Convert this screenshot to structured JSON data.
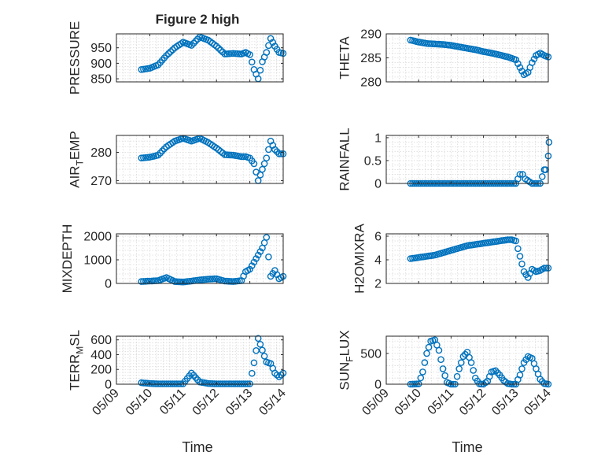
{
  "figure_title": "Figure 2 high",
  "xlabel_left": "Time",
  "xlabel_right": "Time",
  "marker_color": "#0072bd",
  "x_tick_labels": [
    "05/09",
    "05/10",
    "05/11",
    "05/12",
    "05/13",
    "05/14"
  ],
  "chart_data": [
    {
      "type": "scatter",
      "title": "Figure 2 high",
      "ylabel": "PRESSURE",
      "ylim": [
        840,
        995
      ],
      "yticks": [
        850,
        900,
        950
      ],
      "ytick_labels": [
        "850",
        "900",
        "950"
      ],
      "grid": true,
      "x": [
        "05/09 18:00",
        "05/10 00:00",
        "05/10 06:00",
        "05/10 12:00",
        "05/10 18:00",
        "05/11 00:00",
        "05/11 06:00",
        "05/11 12:00",
        "05/11 18:00",
        "05/12 00:00",
        "05/12 06:00",
        "05/12 12:00",
        "05/12 18:00",
        "05/12 21:00",
        "05/13 00:00",
        "05/13 03:00",
        "05/13 06:00",
        "05/13 09:00",
        "05/13 12:00",
        "05/13 15:00",
        "05/13 18:00",
        "05/13 21:00",
        "05/14 00:00"
      ],
      "y": [
        880,
        884,
        895,
        925,
        950,
        968,
        958,
        985,
        975,
        955,
        930,
        932,
        930,
        935,
        928,
        880,
        850,
        905,
        935,
        980,
        955,
        935,
        932
      ]
    },
    {
      "type": "scatter",
      "ylabel": "THETA",
      "ylim": [
        280,
        290
      ],
      "yticks": [
        280,
        285,
        290
      ],
      "ytick_labels": [
        "280",
        "285",
        "290"
      ],
      "grid": true,
      "x": [
        "05/09 18:00",
        "05/10 00:00",
        "05/10 06:00",
        "05/10 12:00",
        "05/10 18:00",
        "05/11 00:00",
        "05/11 06:00",
        "05/11 12:00",
        "05/11 18:00",
        "05/12 00:00",
        "05/12 06:00",
        "05/12 12:00",
        "05/12 18:00",
        "05/13 00:00",
        "05/13 03:00",
        "05/13 06:00",
        "05/13 09:00",
        "05/13 12:00",
        "05/13 15:00",
        "05/13 18:00",
        "05/13 21:00",
        "05/14 00:00"
      ],
      "y": [
        288.7,
        288.3,
        288.0,
        287.9,
        287.8,
        287.6,
        287.3,
        287.0,
        286.7,
        286.3,
        286.0,
        285.6,
        285.2,
        284.6,
        283.0,
        281.5,
        282.0,
        284.0,
        285.5,
        286.0,
        285.5,
        285.2
      ]
    },
    {
      "type": "scatter",
      "ylabel": "AIR_TEMP",
      "ylim": [
        269,
        286
      ],
      "yticks": [
        270,
        280
      ],
      "ytick_labels": [
        "270",
        "280"
      ],
      "grid": true,
      "x": [
        "05/09 18:00",
        "05/10 00:00",
        "05/10 06:00",
        "05/10 12:00",
        "05/10 18:00",
        "05/11 00:00",
        "05/11 06:00",
        "05/11 12:00",
        "05/11 18:00",
        "05/12 00:00",
        "05/12 06:00",
        "05/12 12:00",
        "05/12 18:00",
        "05/12 21:00",
        "05/13 00:00",
        "05/13 03:00",
        "05/13 06:00",
        "05/13 09:00",
        "05/13 12:00",
        "05/13 15:00",
        "05/13 18:00",
        "05/13 21:00",
        "05/14 00:00"
      ],
      "y": [
        278,
        278.3,
        279,
        282,
        284,
        285,
        284,
        285,
        283.5,
        281.5,
        279.2,
        279,
        278.5,
        278.5,
        278,
        276,
        270,
        274,
        278,
        284,
        281,
        279.5,
        279.5
      ]
    },
    {
      "type": "scatter",
      "ylabel": "RAINFALL",
      "ylim": [
        0,
        1.05
      ],
      "yticks": [
        0,
        0.5,
        1
      ],
      "ytick_labels": [
        "0",
        "0.5",
        "1"
      ],
      "grid": true,
      "x": [
        "05/09 18:00",
        "05/10 00:00",
        "05/10 06:00",
        "05/10 12:00",
        "05/10 18:00",
        "05/11 00:00",
        "05/11 06:00",
        "05/11 12:00",
        "05/11 18:00",
        "05/12 00:00",
        "05/12 06:00",
        "05/12 12:00",
        "05/12 18:00",
        "05/13 00:00",
        "05/13 03:00",
        "05/13 05:00",
        "05/13 07:00",
        "05/13 12:00",
        "05/13 18:00",
        "05/13 21:00",
        "05/13 22:00",
        "05/14 00:00",
        "05/14 00:30"
      ],
      "y": [
        0,
        0,
        0,
        0,
        0,
        0,
        0,
        0,
        0,
        0,
        0,
        0,
        0,
        0,
        0.2,
        0.2,
        0.1,
        0,
        0,
        0.3,
        0.3,
        0.6,
        0.9
      ]
    },
    {
      "type": "scatter",
      "ylabel": "MIXDEPTH",
      "ylim": [
        0,
        2100
      ],
      "yticks": [
        0,
        1000,
        2000
      ],
      "ytick_labels": [
        "0",
        "1000",
        "2000"
      ],
      "grid": true,
      "x": [
        "05/09 18:00",
        "05/10 00:00",
        "05/10 06:00",
        "05/10 12:00",
        "05/10 18:00",
        "05/11 00:00",
        "05/11 06:00",
        "05/11 12:00",
        "05/11 18:00",
        "05/12 00:00",
        "05/12 06:00",
        "05/12 12:00",
        "05/12 18:00",
        "05/12 21:00",
        "05/13 00:00",
        "05/13 03:00",
        "05/13 06:00",
        "05/13 09:00",
        "05/13 12:00",
        "05/13 15:00",
        "05/13 18:00",
        "05/13 21:00",
        "05/14 00:00"
      ],
      "y": [
        80,
        100,
        120,
        250,
        80,
        60,
        100,
        150,
        180,
        200,
        100,
        80,
        120,
        500,
        600,
        900,
        1200,
        1500,
        1950,
        300,
        550,
        200,
        300
      ]
    },
    {
      "type": "scatter",
      "ylabel": "H2OMIXRA",
      "ylim": [
        2,
        6.2
      ],
      "yticks": [
        2,
        4,
        6
      ],
      "ytick_labels": [
        "2",
        "4",
        "6"
      ],
      "grid": true,
      "x": [
        "05/09 18:00",
        "05/10 00:00",
        "05/10 06:00",
        "05/10 12:00",
        "05/10 18:00",
        "05/11 00:00",
        "05/11 06:00",
        "05/11 12:00",
        "05/11 18:00",
        "05/12 00:00",
        "05/12 06:00",
        "05/12 12:00",
        "05/12 18:00",
        "05/12 21:00",
        "05/13 00:00",
        "05/13 03:00",
        "05/13 06:00",
        "05/13 09:00",
        "05/13 12:00",
        "05/13 15:00",
        "05/13 18:00",
        "05/13 21:00",
        "05/14 00:00"
      ],
      "y": [
        4.1,
        4.2,
        4.3,
        4.4,
        4.6,
        4.8,
        5.0,
        5.2,
        5.3,
        5.4,
        5.5,
        5.6,
        5.7,
        5.7,
        5.6,
        4.3,
        3.0,
        2.5,
        3.2,
        3.0,
        3.1,
        3.3,
        3.3
      ]
    },
    {
      "type": "scatter",
      "ylabel": "TERR_MSL",
      "ylim": [
        0,
        650
      ],
      "yticks": [
        0,
        200,
        400,
        600
      ],
      "ytick_labels": [
        "0",
        "200",
        "400",
        "600"
      ],
      "grid": true,
      "x": [
        "05/09 18:00",
        "05/10 00:00",
        "05/10 06:00",
        "05/10 12:00",
        "05/10 18:00",
        "05/11 00:00",
        "05/11 06:00",
        "05/11 12:00",
        "05/11 18:00",
        "05/12 00:00",
        "05/12 06:00",
        "05/12 12:00",
        "05/12 18:00",
        "05/12 21:00",
        "05/13 00:00",
        "05/13 03:00",
        "05/13 06:00",
        "05/13 09:00",
        "05/13 12:00",
        "05/13 15:00",
        "05/13 18:00",
        "05/13 21:00",
        "05/14 00:00"
      ],
      "y": [
        20,
        10,
        5,
        5,
        5,
        5,
        150,
        30,
        10,
        5,
        5,
        5,
        5,
        5,
        5,
        290,
        620,
        460,
        300,
        280,
        150,
        100,
        150
      ]
    },
    {
      "type": "scatter",
      "ylabel": "SUN_FLUX",
      "ylim": [
        0,
        780
      ],
      "yticks": [
        0,
        500
      ],
      "ytick_labels": [
        "0",
        "500"
      ],
      "grid": true,
      "x": [
        "05/09 18:00",
        "05/10 00:00",
        "05/10 03:00",
        "05/10 06:00",
        "05/10 09:00",
        "05/10 12:00",
        "05/10 15:00",
        "05/10 18:00",
        "05/10 21:00",
        "05/11 00:00",
        "05/11 03:00",
        "05/11 06:00",
        "05/11 09:00",
        "05/11 12:00",
        "05/11 15:00",
        "05/11 18:00",
        "05/11 21:00",
        "05/12 00:00",
        "05/12 03:00",
        "05/12 06:00",
        "05/12 09:00",
        "05/12 12:00",
        "05/12 15:00",
        "05/12 18:00",
        "05/12 21:00",
        "05/13 00:00",
        "05/13 03:00",
        "05/13 06:00",
        "05/13 09:00",
        "05/13 12:00",
        "05/13 15:00",
        "05/13 18:00",
        "05/13 21:00",
        "05/14 00:00"
      ],
      "y": [
        0,
        5,
        200,
        500,
        700,
        720,
        550,
        250,
        30,
        0,
        0,
        250,
        450,
        520,
        350,
        100,
        5,
        0,
        50,
        200,
        220,
        150,
        60,
        10,
        0,
        0,
        150,
        350,
        450,
        420,
        250,
        80,
        10,
        0
      ]
    }
  ]
}
